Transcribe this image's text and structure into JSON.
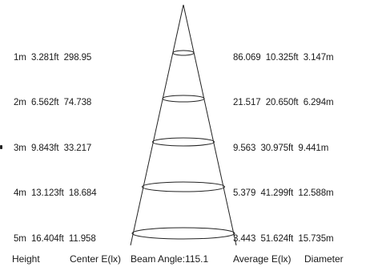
{
  "rows": [
    {
      "left": "1m  3.281ft  298.95",
      "right": "86.069  10.325ft  3.147m"
    },
    {
      "left": "2m  6.562ft  74.738",
      "right": "21.517  20.650ft  6.294m"
    },
    {
      "left": "3m  9.843ft  33.217",
      "right": "9.563  30.975ft  9.441m"
    },
    {
      "left": "4m  13.123ft  18.684",
      "right": "5.379  41.299ft  12.588m"
    },
    {
      "left": "5m  16.404ft  11.958",
      "right": "3.443  51.624ft  15.735m"
    }
  ],
  "footer": {
    "height": "Height",
    "center": "Center E(lx)",
    "beam": "Beam Angle:115.1",
    "average": "Average E(lx)",
    "diameter": "Diameter"
  },
  "colors": {
    "line": "#222222",
    "text": "#1a1a1a"
  }
}
